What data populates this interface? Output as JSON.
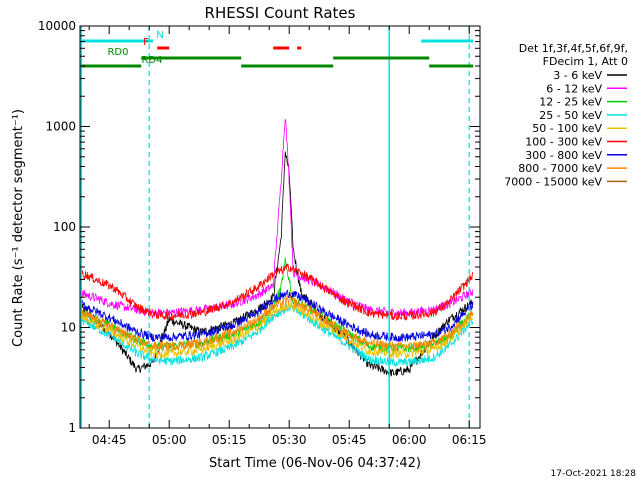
{
  "chart_data": {
    "type": "line",
    "title": "RHESSI Count Rates",
    "xlabel": "Start Time (06-Nov-06 04:37:42)",
    "ylabel": "Count Rate (s⁻¹ detector segment⁻¹)",
    "y_scale": "log",
    "ylim": [
      1,
      10000
    ],
    "xlim_minutes_utc": [
      "04:37:42",
      "06:17:42"
    ],
    "x_ticks": [
      "04:45",
      "05:00",
      "05:15",
      "05:30",
      "05:45",
      "06:00",
      "06:15"
    ],
    "y_ticks": [
      "1",
      "10",
      "100",
      "1000",
      "10000"
    ],
    "timestamp": "17-Oct-2021 18:28",
    "legend_header": [
      "Det 1f,3f,4f,5f,6f,9f,",
      "FDecim 1, Att 0"
    ],
    "series": [
      {
        "name": "3 - 6 keV",
        "color": "#000000",
        "times": [
          "04:38",
          "04:46",
          "04:52",
          "04:56",
          "05:00",
          "05:08",
          "05:16",
          "05:22",
          "05:26",
          "05:28",
          "05:29",
          "05:30",
          "05:31",
          "05:33",
          "05:38",
          "05:44",
          "05:50",
          "05:56",
          "06:00",
          "06:06",
          "06:10",
          "06:16"
        ],
        "values": [
          16,
          8,
          3.8,
          4.5,
          12,
          9,
          11,
          15,
          20,
          80,
          560,
          350,
          60,
          22,
          13,
          8,
          4.2,
          3.5,
          3.8,
          8,
          12,
          18
        ]
      },
      {
        "name": "6 - 12 keV",
        "color": "#ff00ff",
        "times": [
          "04:38",
          "04:46",
          "04:52",
          "04:56",
          "05:00",
          "05:08",
          "05:16",
          "05:22",
          "05:26",
          "05:28",
          "05:29",
          "05:30",
          "05:31",
          "05:33",
          "05:38",
          "05:44",
          "05:50",
          "05:56",
          "06:00",
          "06:06",
          "06:10",
          "06:16"
        ],
        "values": [
          22,
          17,
          15,
          14,
          14,
          15,
          17,
          21,
          26,
          300,
          1300,
          300,
          35,
          32,
          26,
          19,
          15,
          14,
          14,
          15,
          17,
          23
        ]
      },
      {
        "name": "12 - 25 keV",
        "color": "#00cc00",
        "times": [
          "04:38",
          "04:46",
          "04:52",
          "04:56",
          "05:00",
          "05:08",
          "05:16",
          "05:22",
          "05:26",
          "05:28",
          "05:29",
          "05:30",
          "05:31",
          "05:33",
          "05:38",
          "05:44",
          "05:50",
          "05:56",
          "06:00",
          "06:06",
          "06:10",
          "06:16"
        ],
        "values": [
          14,
          10,
          7.5,
          6.5,
          6.5,
          7,
          8.5,
          11,
          16,
          25,
          45,
          30,
          18,
          17,
          13,
          9,
          6.5,
          6.2,
          6.2,
          6.8,
          8,
          14
        ]
      },
      {
        "name": "25 - 50 keV",
        "color": "#00e0e0",
        "times": [
          "04:38",
          "04:46",
          "04:52",
          "04:56",
          "05:00",
          "05:08",
          "05:16",
          "05:22",
          "05:26",
          "05:30",
          "05:34",
          "05:38",
          "05:44",
          "05:50",
          "05:56",
          "06:00",
          "06:06",
          "06:10",
          "06:16"
        ],
        "values": [
          12,
          8,
          5.5,
          4.8,
          4.6,
          5,
          6.5,
          9,
          13,
          16,
          13,
          10,
          7,
          4.8,
          4.5,
          4.5,
          5,
          6.5,
          12
        ]
      },
      {
        "name": "50 - 100 keV",
        "color": "#e8c000",
        "times": [
          "04:38",
          "04:46",
          "04:52",
          "04:56",
          "05:00",
          "05:08",
          "05:16",
          "05:22",
          "05:26",
          "05:30",
          "05:34",
          "05:38",
          "05:44",
          "05:50",
          "05:56",
          "06:00",
          "06:06",
          "06:10",
          "06:16"
        ],
        "values": [
          13,
          9,
          6.5,
          5.5,
          5.5,
          6,
          7.5,
          10,
          14,
          17,
          14,
          11,
          8,
          5.8,
          5.5,
          5.5,
          6,
          7.5,
          13
        ]
      },
      {
        "name": "100 - 300 keV",
        "color": "#ff0000",
        "times": [
          "04:38",
          "04:46",
          "04:52",
          "04:56",
          "05:00",
          "05:08",
          "05:16",
          "05:22",
          "05:26",
          "05:30",
          "05:34",
          "05:38",
          "05:44",
          "05:50",
          "05:56",
          "06:00",
          "06:06",
          "06:10",
          "06:16"
        ],
        "values": [
          35,
          25,
          16,
          13.5,
          13,
          14,
          18,
          25,
          34,
          40,
          33,
          26,
          18,
          14,
          13,
          13,
          14,
          18,
          33
        ]
      },
      {
        "name": "300 - 800 keV",
        "color": "#0000dd",
        "times": [
          "04:38",
          "04:46",
          "04:52",
          "04:56",
          "05:00",
          "05:08",
          "05:16",
          "05:22",
          "05:26",
          "05:30",
          "05:34",
          "05:38",
          "05:44",
          "05:50",
          "05:56",
          "06:00",
          "06:06",
          "06:10",
          "06:16"
        ],
        "values": [
          17,
          12,
          9,
          8,
          8,
          8.5,
          10.5,
          14,
          19,
          22,
          19,
          15,
          11,
          8.5,
          8,
          8,
          8.5,
          10,
          17
        ]
      },
      {
        "name": "800 - 7000 keV",
        "color": "#ff8800",
        "times": [
          "04:38",
          "04:46",
          "04:52",
          "04:56",
          "05:00",
          "05:08",
          "05:16",
          "05:22",
          "05:26",
          "05:30",
          "05:34",
          "05:38",
          "05:44",
          "05:50",
          "05:56",
          "06:00",
          "06:06",
          "06:10",
          "06:16"
        ],
        "values": [
          14,
          10,
          7.5,
          6.5,
          6.5,
          7,
          9,
          12,
          16,
          19,
          16,
          12.5,
          9,
          7,
          6.5,
          6.5,
          7,
          8.5,
          14
        ]
      },
      {
        "name": "7000 - 15000 keV",
        "color": "#aa6600",
        "times": [],
        "values": []
      }
    ],
    "attenuator_bars": [
      {
        "label": "N",
        "color": "#00e0e0",
        "segments": [
          [
            "04:38",
            "04:56"
          ],
          [
            "06:03",
            "06:16"
          ]
        ]
      },
      {
        "label": "F",
        "color": "#ff0000",
        "segments": [
          [
            "04:57",
            "05:00"
          ],
          [
            "05:26",
            "05:30"
          ],
          [
            "05:32",
            "05:33"
          ]
        ]
      },
      {
        "label": "RD0",
        "color": "#008800",
        "segments": [
          [
            "04:53",
            "05:18"
          ],
          [
            "05:41",
            "06:05"
          ]
        ]
      },
      {
        "label": "RD4",
        "color": "#008800",
        "segments": [
          [
            "04:38",
            "04:53"
          ],
          [
            "05:18",
            "05:41"
          ],
          [
            "06:05",
            "06:16"
          ]
        ]
      }
    ],
    "vlines_solid": [
      "04:38",
      "05:55"
    ],
    "vlines_dashed": [
      "04:55",
      "06:15"
    ]
  }
}
